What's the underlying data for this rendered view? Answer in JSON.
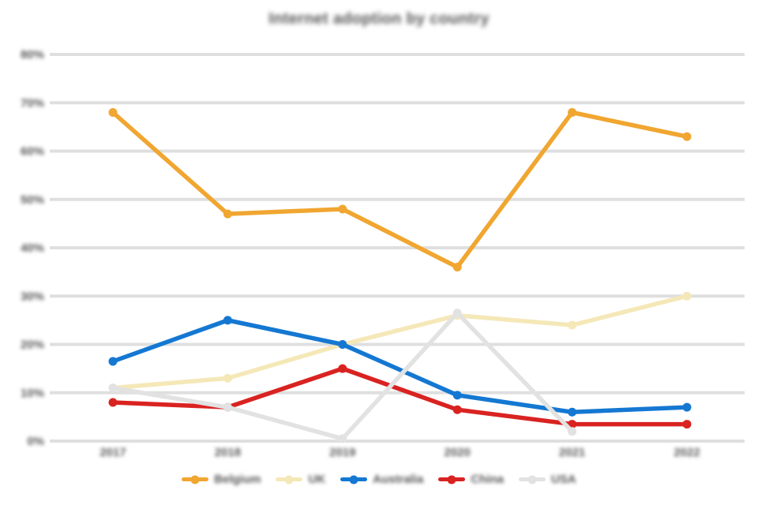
{
  "title": "Internet adoption by country",
  "colors": {
    "background": "#ffffff",
    "grid": "#dfdfdf",
    "text": "#565656",
    "orange": "#f0a630",
    "cream": "#f5e8b8",
    "blue": "#1478d2",
    "red": "#d92321",
    "gray": "#e2e2e2"
  },
  "chart_data": {
    "type": "line",
    "title": "Internet adoption by country",
    "xlabel": "",
    "ylabel": "",
    "categories": [
      "2017",
      "2018",
      "2019",
      "2020",
      "2021",
      "2022"
    ],
    "series": [
      {
        "name": "Belgium",
        "color": "#f0a630",
        "values": [
          68,
          47,
          48,
          36,
          68,
          63
        ]
      },
      {
        "name": "UK",
        "color": "#f5e8b8",
        "values": [
          11,
          13,
          20,
          26,
          24,
          30
        ]
      },
      {
        "name": "Australia",
        "color": "#1478d2",
        "values": [
          16.5,
          25,
          20,
          9.5,
          6,
          7
        ]
      },
      {
        "name": "China",
        "color": "#d92321",
        "values": [
          8,
          7,
          15,
          6.5,
          3.5,
          3.5
        ]
      },
      {
        "name": "USA",
        "color": "#e2e2e2",
        "values": [
          11,
          7,
          0.5,
          26.5,
          2,
          null
        ]
      }
    ],
    "y_ticks": [
      "0%",
      "10%",
      "20%",
      "30%",
      "40%",
      "50%",
      "60%",
      "70%",
      "80%"
    ],
    "ylim": [
      0,
      80
    ],
    "grid": "horizontal",
    "legend_position": "bottom",
    "markers": true
  }
}
